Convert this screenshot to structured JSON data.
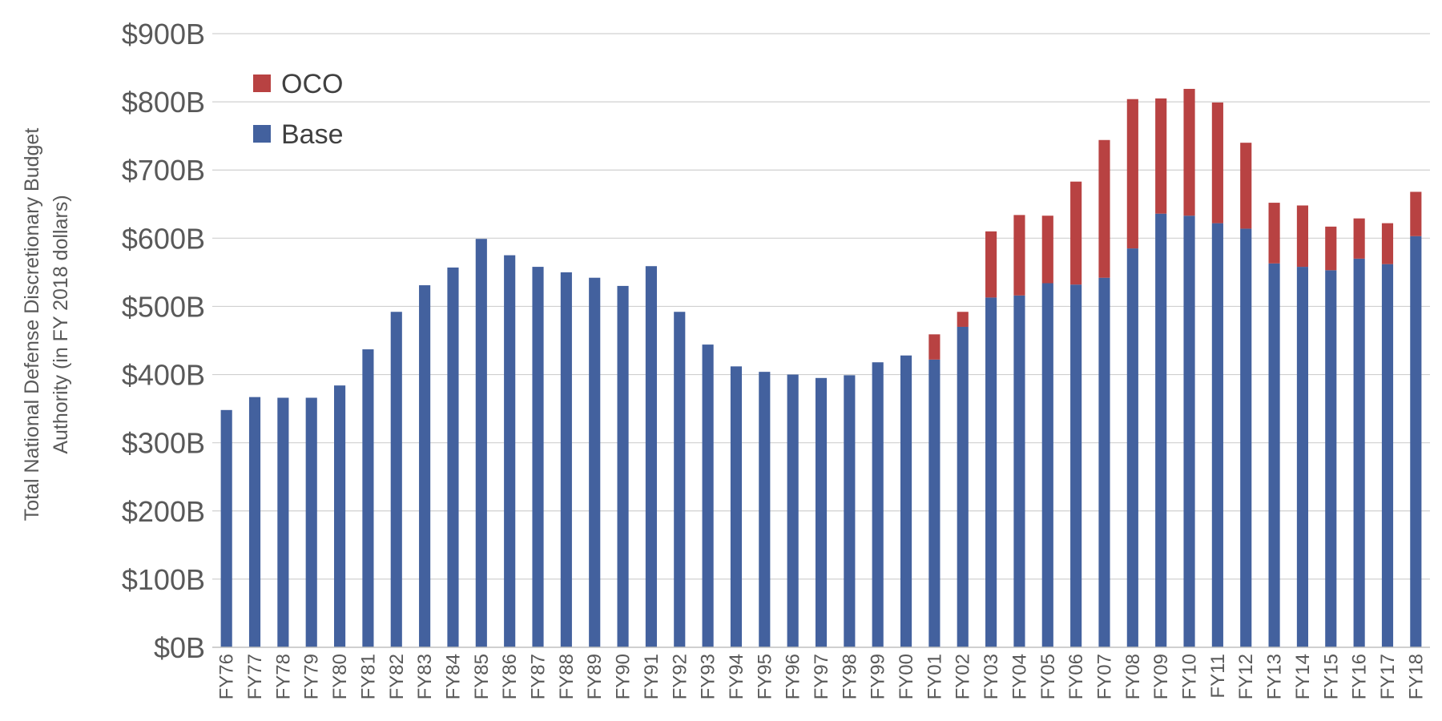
{
  "chart_data": {
    "type": "bar",
    "stacked": true,
    "categories": [
      "FY76",
      "FY77",
      "FY78",
      "FY79",
      "FY80",
      "FY81",
      "FY82",
      "FY83",
      "FY84",
      "FY85",
      "FY86",
      "FY87",
      "FY88",
      "FY89",
      "FY90",
      "FY91",
      "FY92",
      "FY93",
      "FY94",
      "FY95",
      "FY96",
      "FY97",
      "FY98",
      "FY99",
      "FY00",
      "FY01",
      "FY02",
      "FY03",
      "FY04",
      "FY05",
      "FY06",
      "FY07",
      "FY08",
      "FY09",
      "FY10",
      "FY11",
      "FY12",
      "FY13",
      "FY14",
      "FY15",
      "FY16",
      "FY17",
      "FY18"
    ],
    "series": [
      {
        "name": "Base",
        "color": "#43619e",
        "values": [
          348,
          367,
          366,
          366,
          384,
          437,
          492,
          531,
          557,
          599,
          575,
          558,
          550,
          542,
          530,
          559,
          492,
          444,
          412,
          404,
          400,
          395,
          399,
          418,
          428,
          422,
          470,
          513,
          516,
          534,
          532,
          542,
          585,
          636,
          633,
          622,
          614,
          563,
          558,
          553,
          570,
          562,
          603
        ]
      },
      {
        "name": "OCO",
        "color": "#b84242",
        "values": [
          0,
          0,
          0,
          0,
          0,
          0,
          0,
          0,
          0,
          0,
          0,
          0,
          0,
          0,
          0,
          0,
          0,
          0,
          0,
          0,
          0,
          0,
          0,
          0,
          0,
          37,
          22,
          97,
          118,
          99,
          151,
          202,
          219,
          169,
          186,
          177,
          126,
          89,
          90,
          64,
          59,
          60,
          65
        ]
      }
    ],
    "legend_order": [
      "OCO",
      "Base"
    ],
    "legend_position": "top-left",
    "ylabel": "Total National Defense Discretionary Budget Authority (in FY 2018 dollars)",
    "ylabel_lines": [
      "Total National Defense Discretionary Budget",
      "Authority (in FY 2018 dollars)"
    ],
    "xlabel": "",
    "ylim": [
      0,
      900
    ],
    "yticks": [
      0,
      100,
      200,
      300,
      400,
      500,
      600,
      700,
      800,
      900
    ],
    "ytick_labels": [
      "$0B",
      "$100B",
      "$200B",
      "$300B",
      "$400B",
      "$500B",
      "$600B",
      "$700B",
      "$800B",
      "$900B"
    ],
    "grid": true
  }
}
